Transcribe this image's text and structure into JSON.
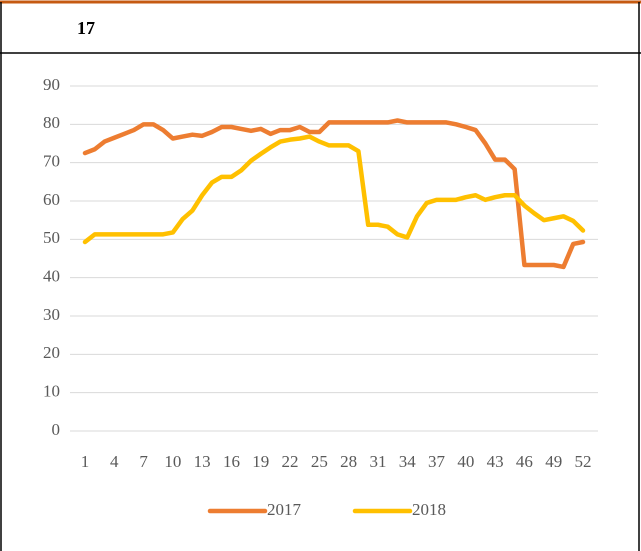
{
  "header": "17",
  "chart_data": {
    "type": "line",
    "categories": [
      1,
      null,
      null,
      4,
      null,
      null,
      7,
      null,
      null,
      10,
      null,
      null,
      13,
      null,
      null,
      16,
      null,
      null,
      19,
      null,
      null,
      22,
      null,
      null,
      25,
      null,
      null,
      28,
      null,
      null,
      31,
      null,
      null,
      34,
      null,
      null,
      37,
      null,
      null,
      40,
      null,
      null,
      43,
      null,
      null,
      46,
      null,
      null,
      49,
      null,
      null,
      52
    ],
    "series": [
      {
        "name": "2017",
        "color": "#ed7d31",
        "values": [
          72.5,
          73.5,
          75.5,
          76.5,
          77.5,
          78.5,
          80,
          80,
          78.5,
          76.3,
          76.8,
          77.3,
          77,
          78,
          79.3,
          79.3,
          78.8,
          78.3,
          78.8,
          77.5,
          78.5,
          78.5,
          79.3,
          78,
          78,
          80.5,
          80.5,
          80.5,
          80.5,
          80.5,
          80.5,
          80.5,
          81,
          80.5,
          80.5,
          80.5,
          80.5,
          80.5,
          80,
          79.3,
          78.5,
          75,
          70.8,
          70.8,
          68.3,
          43.3,
          43.3,
          43.3,
          43.3,
          42.8,
          48.8,
          49.3
        ]
      },
      {
        "name": "2018",
        "color": "#ffc000",
        "values": [
          49.3,
          51.3,
          51.3,
          51.3,
          51.3,
          51.3,
          51.3,
          51.3,
          51.3,
          51.8,
          55.3,
          57.5,
          61.5,
          64.8,
          66.3,
          66.3,
          68,
          70.5,
          72.3,
          74,
          75.5,
          76,
          76.3,
          76.8,
          75.5,
          74.5,
          74.5,
          74.5,
          73,
          53.8,
          53.8,
          53.3,
          51.3,
          50.5,
          56,
          59.5,
          60.3,
          60.3,
          60.3,
          61,
          61.5,
          60.3,
          61,
          61.5,
          61.5,
          58.8,
          56.8,
          55,
          55.5,
          56,
          54.8,
          52.3
        ]
      }
    ],
    "ylim": [
      0,
      90
    ],
    "yticks": [
      0,
      10,
      20,
      30,
      40,
      50,
      60,
      70,
      80,
      90
    ],
    "grid": true,
    "legend": "bottom"
  }
}
